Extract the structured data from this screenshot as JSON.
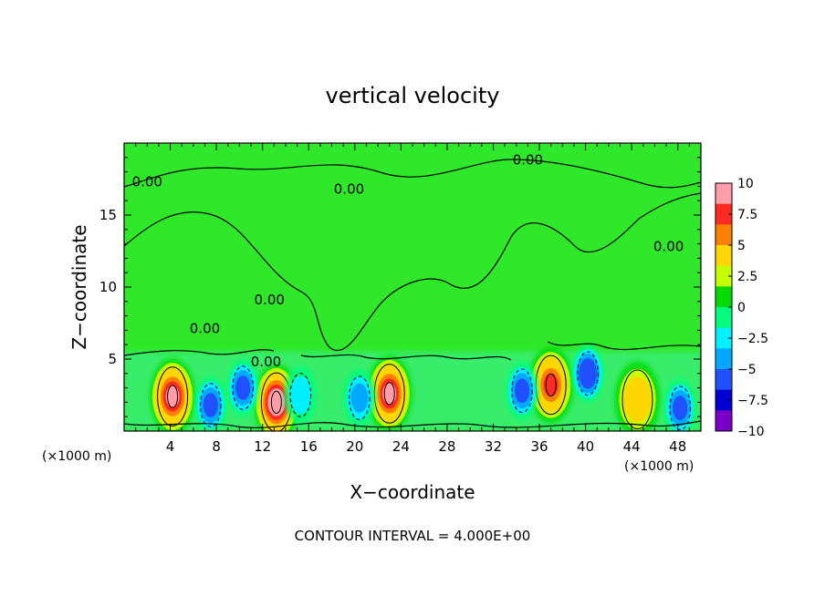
{
  "chart_data": {
    "type": "heatmap",
    "title": "vertical velocity",
    "xlabel": "X−coordinate",
    "ylabel": "Z−coordinate",
    "x_unit_left": "(×1000 m)",
    "x_unit_right": "(×1000 m)",
    "footer": "CONTOUR INTERVAL = 4.000E+00",
    "xlim": [
      0,
      50
    ],
    "ylim": [
      0,
      20
    ],
    "x_ticks": [
      4,
      8,
      12,
      16,
      20,
      24,
      28,
      32,
      36,
      40,
      44,
      48
    ],
    "x_tick_labels": [
      "4",
      "8",
      "12",
      "16",
      "20",
      "24",
      "28",
      "32",
      "36",
      "40",
      "44",
      "48"
    ],
    "y_ticks": [
      5,
      10,
      15
    ],
    "y_tick_labels": [
      "5",
      "10",
      "15"
    ],
    "colorbar": {
      "min": -10,
      "max": 10,
      "ticks": [
        10,
        7.5,
        5,
        2.5,
        0,
        -2.5,
        -5,
        -7.5,
        -10
      ],
      "tick_labels": [
        "10",
        "7.5",
        "5",
        "2.5",
        "0",
        "−2.5",
        "−5",
        "−7.5",
        "−10"
      ],
      "colors": [
        "#ff9da8",
        "#ff2b22",
        "#ff7f00",
        "#ffd700",
        "#c5ff00",
        "#00dc00",
        "#00ff7f",
        "#00f0ff",
        "#00a8ff",
        "#2050ff",
        "#0000d0",
        "#7a00c8"
      ]
    },
    "contour_labels": [
      {
        "text": "0.00",
        "x": 2.0,
        "y": 17.0
      },
      {
        "text": "0.00",
        "x": 19.5,
        "y": 16.5
      },
      {
        "text": "0.00",
        "x": 35.0,
        "y": 18.5
      },
      {
        "text": "0.00",
        "x": 47.2,
        "y": 12.5
      },
      {
        "text": "0.00",
        "x": 7.0,
        "y": 6.8
      },
      {
        "text": "0.00",
        "x": 12.6,
        "y": 8.8
      },
      {
        "text": "0.00",
        "x": 12.3,
        "y": 4.5
      }
    ],
    "features": [
      {
        "kind": "updraft",
        "x": 4.2,
        "z": 2.4,
        "peak": 9
      },
      {
        "kind": "updraft",
        "x": 13.2,
        "z": 2.0,
        "peak": 10
      },
      {
        "kind": "updraft",
        "x": 23.0,
        "z": 2.6,
        "peak": 9
      },
      {
        "kind": "updraft",
        "x": 37.0,
        "z": 3.2,
        "peak": 8.5
      },
      {
        "kind": "updraft",
        "x": 44.5,
        "z": 2.2,
        "peak": 5.5
      },
      {
        "kind": "downdraft",
        "x": 7.5,
        "z": 1.8,
        "peak": -5.5
      },
      {
        "kind": "downdraft",
        "x": 10.3,
        "z": 3.0,
        "peak": -5
      },
      {
        "kind": "downdraft",
        "x": 15.3,
        "z": 2.5,
        "peak": -3.5
      },
      {
        "kind": "downdraft",
        "x": 20.4,
        "z": 2.3,
        "peak": -4
      },
      {
        "kind": "downdraft",
        "x": 34.5,
        "z": 2.8,
        "peak": -6
      },
      {
        "kind": "downdraft",
        "x": 40.2,
        "z": 4.0,
        "peak": -6.5
      },
      {
        "kind": "downdraft",
        "x": 48.2,
        "z": 1.6,
        "peak": -5
      }
    ]
  }
}
